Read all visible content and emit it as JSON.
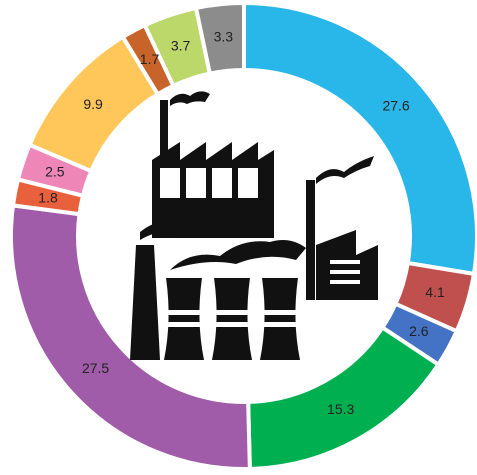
{
  "chart_data": {
    "type": "donut",
    "categories": [
      null,
      null,
      null,
      null,
      null,
      null,
      null,
      null,
      null,
      null,
      null
    ],
    "values": [
      27.6,
      4.1,
      2.6,
      15.3,
      27.5,
      1.8,
      2.5,
      9.9,
      1.7,
      3.7,
      3.3
    ],
    "colors": [
      "#29b6e8",
      "#c0504d",
      "#4472c4",
      "#00b050",
      "#a05ca8",
      "#e8603c",
      "#ee86b8",
      "#ffc65a",
      "#c8642a",
      "#bcd86a",
      "#8c8c8c"
    ]
  }
}
